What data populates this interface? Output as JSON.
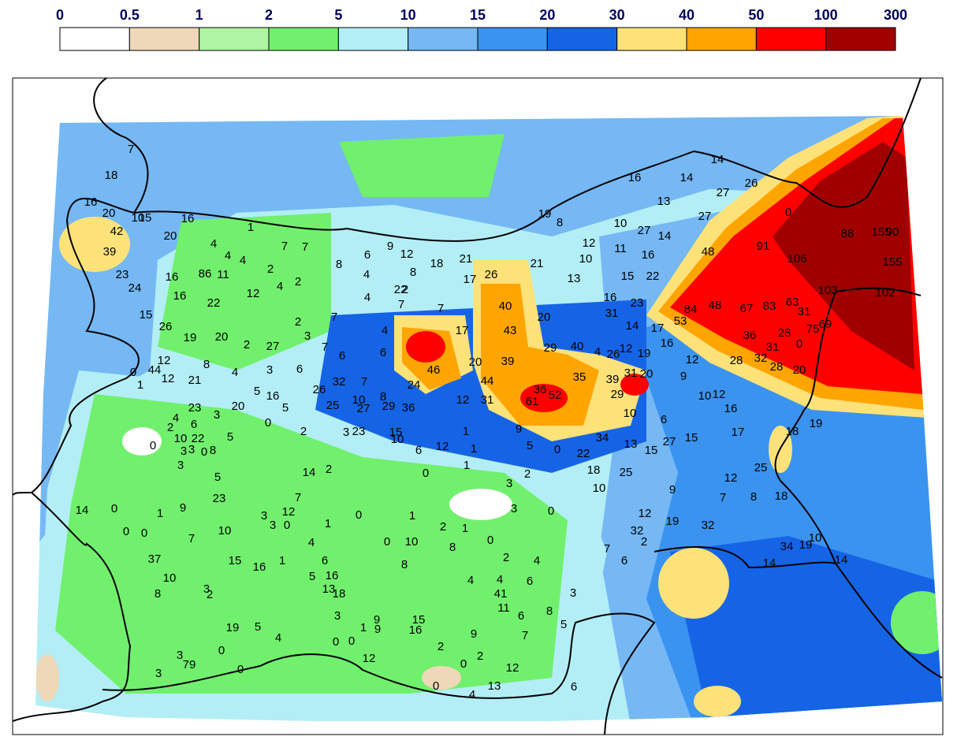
{
  "legend": {
    "ticks": [
      0,
      0.5,
      1,
      2,
      5,
      10,
      15,
      20,
      30,
      40,
      50,
      100,
      300
    ],
    "colors": [
      "#ffffff",
      "#efd8b7",
      "#aff5a3",
      "#71f06d",
      "#b3eef6",
      "#75b8f4",
      "#3b93f0",
      "#1664e6",
      "#fde27a",
      "#ffa500",
      "#ff0000",
      "#a00000"
    ]
  },
  "stations": [
    7,
    18,
    16,
    20,
    10,
    15,
    16,
    42,
    20,
    39,
    23,
    24,
    4,
    1,
    4,
    4,
    2,
    7,
    7,
    8,
    6,
    9,
    12,
    18,
    21,
    8,
    4,
    16,
    86,
    11,
    12,
    4,
    2,
    16,
    22,
    15,
    26,
    4,
    22,
    2,
    7,
    7,
    17,
    26,
    21,
    13,
    12,
    10,
    19,
    8,
    10,
    27,
    14,
    16,
    13,
    14,
    14,
    27,
    26,
    27,
    0,
    88,
    155,
    90,
    48,
    91,
    106,
    155,
    103,
    102,
    84,
    53,
    48,
    67,
    83,
    63,
    31,
    69,
    75,
    28,
    31,
    0,
    36,
    28,
    32,
    28,
    20,
    11,
    16,
    15,
    22,
    16,
    31,
    23,
    14,
    17,
    16,
    12,
    19,
    26,
    4,
    40,
    29,
    40,
    43,
    20,
    17,
    2,
    7,
    19,
    20,
    2,
    27,
    3,
    7,
    6,
    4,
    6,
    46,
    39,
    20,
    44,
    36,
    52,
    61,
    35,
    39,
    31,
    20,
    29,
    10,
    6,
    12,
    9,
    10,
    12,
    16,
    12,
    44,
    12,
    0,
    1,
    8,
    4,
    3,
    6,
    21,
    32,
    7,
    5,
    16,
    5,
    26,
    24,
    23,
    3,
    20,
    25,
    10,
    8,
    27,
    29,
    36,
    12,
    31,
    4,
    6,
    2,
    0,
    2,
    10,
    22,
    5,
    3,
    3,
    0,
    8,
    3,
    23,
    15,
    10,
    6,
    12,
    1,
    1,
    9,
    5,
    0,
    22,
    34,
    13,
    15,
    27,
    15,
    17,
    18,
    19,
    0,
    3,
    5,
    14,
    2,
    0,
    1,
    3,
    2,
    18,
    25,
    25,
    12,
    7,
    8,
    18,
    9,
    10,
    7,
    23,
    9,
    0,
    1,
    14,
    0,
    0,
    3,
    3,
    0,
    12,
    1,
    0,
    1,
    2,
    1,
    3,
    0,
    12,
    19,
    32,
    10,
    7,
    4,
    0,
    10,
    8,
    0,
    32,
    2,
    34,
    19,
    10,
    7,
    6,
    14,
    14,
    37,
    15,
    16,
    1,
    6,
    8,
    2,
    4,
    10,
    8,
    3,
    2,
    5,
    16,
    13,
    18,
    4,
    4,
    41,
    6,
    3,
    11,
    6,
    8,
    5,
    3,
    9,
    15,
    16,
    1,
    9,
    19,
    5,
    4,
    0,
    79,
    9,
    7,
    0,
    0,
    12,
    2,
    2,
    0,
    12,
    3,
    3,
    0,
    0,
    4,
    13,
    6
  ]
}
